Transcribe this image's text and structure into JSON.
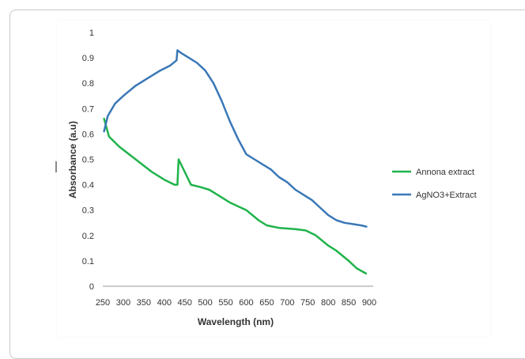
{
  "chart_data": {
    "type": "line",
    "title": "",
    "xlabel": "Wavelength (nm)",
    "ylabel": "Absorbance (a.u)",
    "xlim": [
      250,
      900
    ],
    "ylim": [
      0,
      1
    ],
    "x_ticks": [
      "250",
      "300",
      "350",
      "400",
      "450",
      "500",
      "550",
      "600",
      "650",
      "700",
      "750",
      "800",
      "850",
      "900"
    ],
    "y_ticks": [
      "0",
      "0.1",
      "0.2",
      "0.3",
      "0.4",
      "0.5",
      "0.6",
      "0.7",
      "0.8",
      "0.9",
      "1"
    ],
    "grid": false,
    "legend_position": "right",
    "series": [
      {
        "name": "Annona extract",
        "color": "#1fb34a",
        "points": [
          [
            253,
            0.66
          ],
          [
            265,
            0.59
          ],
          [
            290,
            0.55
          ],
          [
            330,
            0.5
          ],
          [
            370,
            0.45
          ],
          [
            400,
            0.42
          ],
          [
            425,
            0.4
          ],
          [
            432,
            0.4
          ],
          [
            435,
            0.5
          ],
          [
            450,
            0.45
          ],
          [
            465,
            0.4
          ],
          [
            490,
            0.39
          ],
          [
            510,
            0.38
          ],
          [
            530,
            0.36
          ],
          [
            560,
            0.33
          ],
          [
            600,
            0.3
          ],
          [
            630,
            0.26
          ],
          [
            650,
            0.24
          ],
          [
            680,
            0.23
          ],
          [
            720,
            0.225
          ],
          [
            745,
            0.22
          ],
          [
            770,
            0.2
          ],
          [
            800,
            0.16
          ],
          [
            820,
            0.14
          ],
          [
            850,
            0.1
          ],
          [
            870,
            0.07
          ],
          [
            892,
            0.05
          ]
        ]
      },
      {
        "name": "AgNO3+Extract",
        "color": "#3a78b7",
        "points": [
          [
            253,
            0.61
          ],
          [
            262,
            0.67
          ],
          [
            280,
            0.72
          ],
          [
            300,
            0.75
          ],
          [
            330,
            0.79
          ],
          [
            360,
            0.82
          ],
          [
            390,
            0.85
          ],
          [
            415,
            0.87
          ],
          [
            430,
            0.89
          ],
          [
            432,
            0.93
          ],
          [
            440,
            0.92
          ],
          [
            460,
            0.9
          ],
          [
            480,
            0.88
          ],
          [
            500,
            0.85
          ],
          [
            520,
            0.8
          ],
          [
            540,
            0.73
          ],
          [
            560,
            0.65
          ],
          [
            580,
            0.58
          ],
          [
            600,
            0.52
          ],
          [
            620,
            0.5
          ],
          [
            640,
            0.48
          ],
          [
            660,
            0.46
          ],
          [
            680,
            0.43
          ],
          [
            700,
            0.41
          ],
          [
            720,
            0.38
          ],
          [
            740,
            0.36
          ],
          [
            760,
            0.34
          ],
          [
            780,
            0.31
          ],
          [
            800,
            0.28
          ],
          [
            820,
            0.26
          ],
          [
            840,
            0.25
          ],
          [
            860,
            0.245
          ],
          [
            880,
            0.24
          ],
          [
            893,
            0.235
          ]
        ]
      }
    ]
  }
}
